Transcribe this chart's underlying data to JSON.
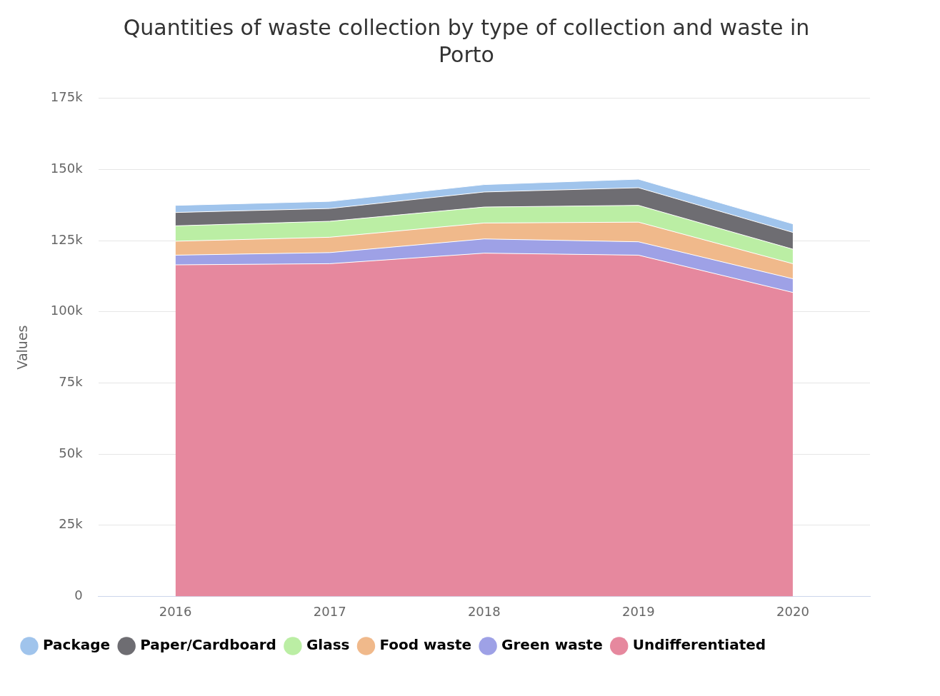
{
  "chart_data": {
    "type": "area",
    "title": "Quantities of waste collection by type of collection and waste in Porto",
    "ylabel": "Values",
    "categories": [
      "2016",
      "2017",
      "2018",
      "2019",
      "2020"
    ],
    "stacked": true,
    "series": [
      {
        "name": "Undifferentiated",
        "color": "#e6889e",
        "values": [
          116.5,
          116.9,
          120.6,
          119.9,
          106.8
        ]
      },
      {
        "name": "Green waste",
        "color": "#9ea1e6",
        "values": [
          3.4,
          3.9,
          5.0,
          4.7,
          4.8
        ]
      },
      {
        "name": "Food waste",
        "color": "#f0b98b",
        "values": [
          4.9,
          5.4,
          5.6,
          6.9,
          5.3
        ]
      },
      {
        "name": "Glass",
        "color": "#bbeea4",
        "values": [
          5.4,
          5.6,
          5.6,
          5.9,
          5.1
        ]
      },
      {
        "name": "Paper/Cardboard",
        "color": "#6e6d72",
        "values": [
          4.7,
          4.5,
          5.3,
          6.2,
          5.9
        ]
      },
      {
        "name": "Package",
        "color": "#a0c4ec",
        "values": [
          2.5,
          2.5,
          2.6,
          3.0,
          3.0
        ]
      }
    ],
    "ylim": [
      0,
      175
    ],
    "yticks": [
      0,
      {
        "value": 25,
        "label": "25k"
      },
      {
        "value": 50,
        "label": "50k"
      },
      {
        "value": 75,
        "label": "75k"
      },
      {
        "value": 100,
        "label": "100k"
      },
      {
        "value": 125,
        "label": "125k"
      },
      {
        "value": 150,
        "label": "150k"
      },
      {
        "value": 175,
        "label": "175k"
      }
    ],
    "grid": "y",
    "legend": "bottom",
    "marker": "none"
  }
}
